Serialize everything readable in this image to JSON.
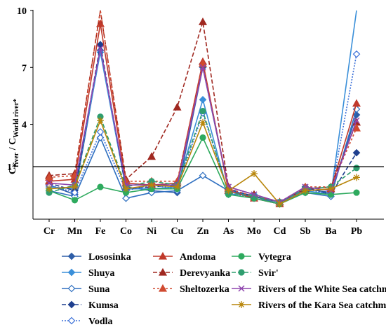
{
  "chart_data": {
    "type": "line",
    "ylabel": "C_river / C_World river*",
    "ylabel_main": "C",
    "ylabel_sub1": "river",
    "ylabel_sep": " / C",
    "ylabel_sub2": "World river*",
    "reference_label": "1*",
    "categories": [
      "Cr",
      "Mn",
      "Fe",
      "Co",
      "Ni",
      "Cu",
      "Zn",
      "As",
      "Mo",
      "Cd",
      "Sb",
      "Ba",
      "Pb"
    ],
    "y_ticks": [
      10,
      7,
      4
    ],
    "ylim": [
      -1,
      10
    ],
    "grid": false,
    "legend_position": "bottom",
    "series": [
      {
        "name": "Lososinka",
        "color": "#2E5EA8",
        "dash": "",
        "marker": "diamond",
        "filled": true,
        "values": [
          0.8,
          0.3,
          7.9,
          0.7,
          0.5,
          0.4,
          7.0,
          0.6,
          0.1,
          -0.2,
          0.6,
          0.4,
          4.5
        ]
      },
      {
        "name": "Shuya",
        "color": "#3A8FD9",
        "dash": "",
        "marker": "diamond",
        "filled": true,
        "values": [
          0.7,
          0.6,
          7.8,
          0.6,
          0.6,
          0.7,
          5.3,
          0.3,
          0.3,
          -0.1,
          0.5,
          0.3,
          10.0
        ]
      },
      {
        "name": "Suna",
        "color": "#2E6FC0",
        "dash": "",
        "marker": "diamond",
        "filled": false,
        "values": [
          0.5,
          0.2,
          3.3,
          0.1,
          0.4,
          0.5,
          1.3,
          0.5,
          0.2,
          -0.2,
          0.4,
          0.2,
          4.8
        ]
      },
      {
        "name": "Kumsa",
        "color": "#1F3F8F",
        "dash": "6,3",
        "marker": "diamond",
        "filled": true,
        "values": [
          0.9,
          0.5,
          8.2,
          0.6,
          0.7,
          0.8,
          7.2,
          0.6,
          0.2,
          -0.1,
          0.7,
          0.3,
          2.5
        ]
      },
      {
        "name": "Vodla",
        "color": "#3A6FD8",
        "dash": "2,2",
        "marker": "diamond",
        "filled": false,
        "values": [
          0.8,
          0.4,
          3.6,
          0.5,
          0.8,
          0.6,
          4.6,
          0.4,
          0.1,
          -0.2,
          0.6,
          0.3,
          7.7
        ]
      },
      {
        "name": "Andoma",
        "color": "#C0392B",
        "dash": "",
        "marker": "triangle",
        "filled": true,
        "values": [
          1.0,
          1.1,
          9.3,
          0.9,
          0.8,
          0.9,
          7.3,
          0.5,
          0.1,
          -0.2,
          0.5,
          0.6,
          5.1
        ]
      },
      {
        "name": "Derevyanka",
        "color": "#A02820",
        "dash": "6,3",
        "marker": "triangle",
        "filled": true,
        "values": [
          1.3,
          1.4,
          10.0,
          1.1,
          2.3,
          4.9,
          9.4,
          0.7,
          0.3,
          -0.1,
          0.6,
          0.7,
          4.1
        ]
      },
      {
        "name": "Sheltozerka",
        "color": "#D04A30",
        "dash": "3,3",
        "marker": "triangle",
        "filled": true,
        "values": [
          1.2,
          1.3,
          10.0,
          1.0,
          1.0,
          1.0,
          7.2,
          0.6,
          0.2,
          -0.1,
          0.7,
          0.7,
          3.8
        ]
      },
      {
        "name": "Vytegra",
        "color": "#2EAA5E",
        "dash": "",
        "marker": "circle",
        "filled": true,
        "values": [
          0.5,
          0.0,
          0.7,
          0.4,
          0.6,
          0.6,
          3.3,
          0.3,
          0.1,
          -0.2,
          0.4,
          0.3,
          0.4
        ]
      },
      {
        "name": "Svir'",
        "color": "#2F9E6F",
        "dash": "6,3",
        "marker": "circle",
        "filled": true,
        "values": [
          0.4,
          0.8,
          4.4,
          0.7,
          1.0,
          0.8,
          4.7,
          0.4,
          0.2,
          -0.1,
          0.6,
          0.7,
          1.7
        ]
      },
      {
        "name": "Rivers of the White Sea catchment area**",
        "color": "#8E44AD",
        "dash": "",
        "marker": "x",
        "filled": false,
        "values": [
          0.9,
          0.8,
          8.0,
          0.8,
          0.8,
          0.8,
          7.0,
          0.7,
          0.3,
          -0.1,
          0.7,
          0.5,
          4.2
        ]
      },
      {
        "name": "Rivers of the Kara Sea catchment area**",
        "color": "#B8860B",
        "dash": "",
        "marker": "star",
        "filled": false,
        "values": [
          0.6,
          0.7,
          4.2,
          0.6,
          0.8,
          0.7,
          4.1,
          0.5,
          1.4,
          -0.2,
          0.5,
          0.6,
          1.2
        ]
      }
    ]
  }
}
